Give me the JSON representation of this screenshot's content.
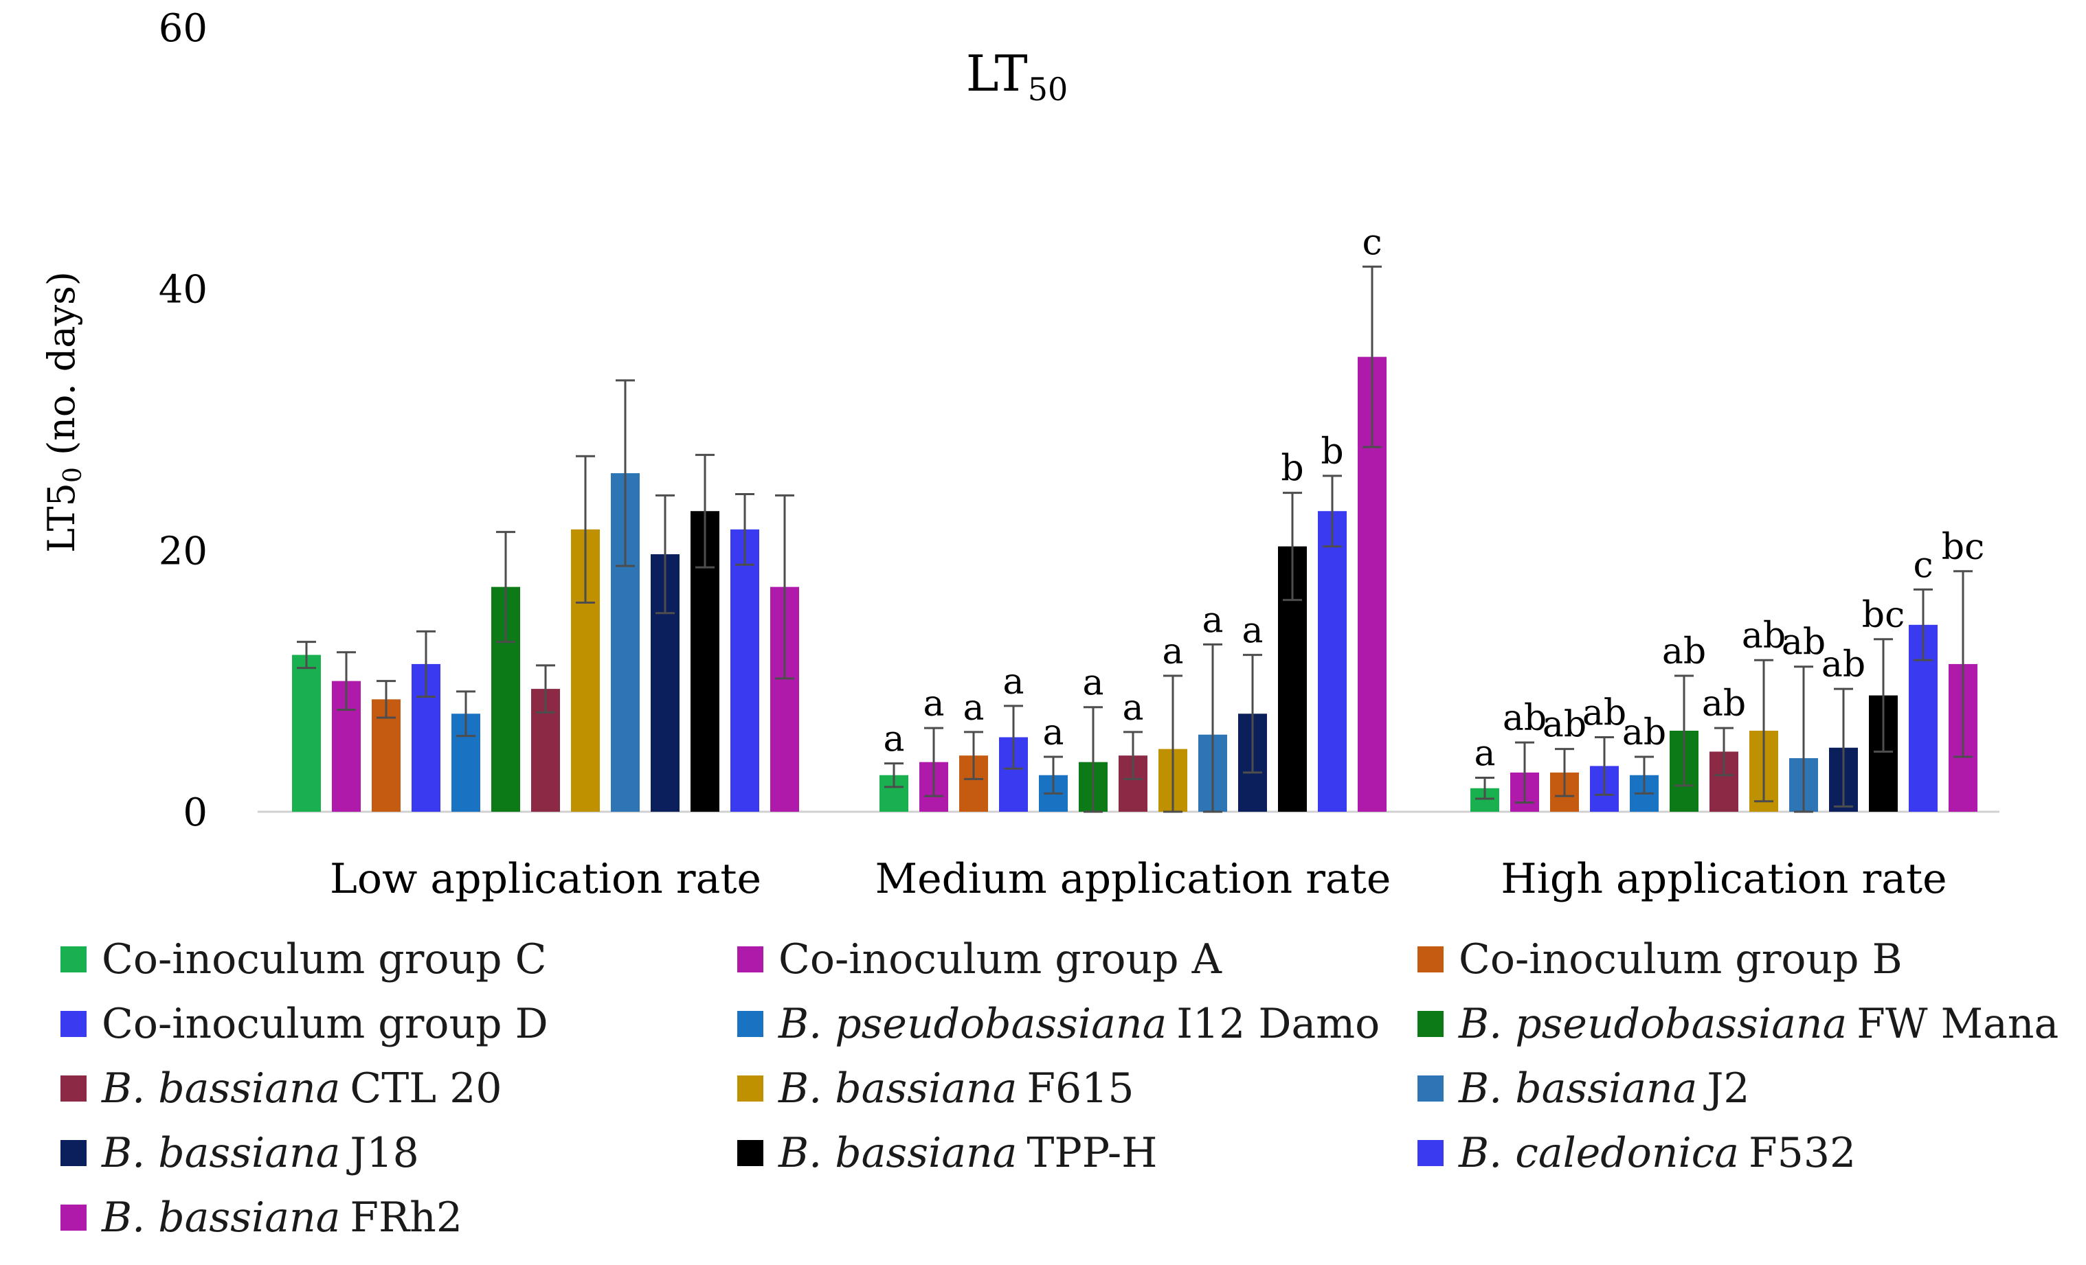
{
  "chart_data": {
    "type": "bar",
    "title": "LT",
    "title_subscript": "50",
    "ylabel": "LT5",
    "ylabel_subscript": "0",
    "ylabel_suffix": " (no. days)",
    "ylim": [
      0,
      60
    ],
    "yticks": [
      0,
      20,
      40,
      60
    ],
    "grid": false,
    "legend_position": "bottom",
    "categories": [
      "Low application rate",
      "Medium application rate",
      "High application rate"
    ],
    "series": [
      {
        "name": "Co-inoculum group C",
        "color": "#19b050",
        "values": [
          12.0,
          2.8,
          1.8
        ],
        "errors": [
          1.0,
          0.9,
          0.8
        ],
        "labels": [
          "",
          "a",
          "a"
        ]
      },
      {
        "name": "Co-inoculum group A",
        "color": "#b01aab",
        "values": [
          10.0,
          3.8,
          3.0
        ],
        "errors": [
          2.2,
          2.6,
          2.3
        ],
        "labels": [
          "",
          "a",
          "ab"
        ]
      },
      {
        "name": "Co-inoculum group B",
        "color": "#c55a11",
        "values": [
          8.6,
          4.3,
          3.0
        ],
        "errors": [
          1.4,
          1.8,
          1.8
        ],
        "labels": [
          "",
          "a",
          "ab"
        ]
      },
      {
        "name": "Co-inoculum group D",
        "color": "#3a3af0",
        "values": [
          11.3,
          5.7,
          3.5
        ],
        "errors": [
          2.5,
          2.4,
          2.2
        ],
        "labels": [
          "",
          "a",
          "ab"
        ]
      },
      {
        "name": "I12 Damo",
        "prefix": "B. pseudobassiana",
        "color": "#1a72c2",
        "values": [
          7.5,
          2.8,
          2.8
        ],
        "errors": [
          1.7,
          1.4,
          1.4
        ],
        "labels": [
          "",
          "a",
          "ab"
        ]
      },
      {
        "name": "FW Mana",
        "prefix": "B. pseudobassiana",
        "color": "#0d7a18",
        "values": [
          17.2,
          3.8,
          6.2
        ],
        "errors": [
          4.2,
          4.2,
          4.2
        ],
        "labels": [
          "",
          "a",
          "ab"
        ]
      },
      {
        "name": "CTL 20",
        "prefix": "B. bassiana",
        "color": "#8c2a45",
        "values": [
          9.4,
          4.3,
          4.6
        ],
        "errors": [
          1.8,
          1.8,
          1.8
        ],
        "labels": [
          "",
          "a",
          "ab"
        ]
      },
      {
        "name": "F615",
        "prefix": "B. bassiana",
        "color": "#bf9000",
        "values": [
          21.6,
          4.8,
          6.2
        ],
        "errors": [
          5.6,
          5.6,
          5.4
        ],
        "labels": [
          "",
          "a",
          "ab"
        ]
      },
      {
        "name": "J2",
        "prefix": "B. bassiana",
        "color": "#2e75b6",
        "values": [
          25.9,
          5.9,
          4.1
        ],
        "errors": [
          7.1,
          6.9,
          7.0
        ],
        "labels": [
          "",
          "a",
          "ab"
        ]
      },
      {
        "name": "J18",
        "prefix": "B. bassiana",
        "color": "#0b1f5c",
        "values": [
          19.7,
          7.5,
          4.9
        ],
        "errors": [
          4.5,
          4.5,
          4.5
        ],
        "labels": [
          "",
          "a",
          "ab"
        ]
      },
      {
        "name": "TPP-H",
        "prefix": "B. bassiana",
        "color": "#000000",
        "values": [
          23.0,
          20.3,
          8.9
        ],
        "errors": [
          4.3,
          4.1,
          4.3
        ],
        "labels": [
          "",
          "b",
          "bc"
        ]
      },
      {
        "name": "F532",
        "prefix": "B. caledonica",
        "color": "#3a3af0",
        "values": [
          21.6,
          23.0,
          14.3
        ],
        "errors": [
          2.7,
          2.7,
          2.7
        ],
        "labels": [
          "",
          "b",
          "c"
        ]
      },
      {
        "name": "FRh2",
        "prefix": "B. bassiana",
        "color": "#b01aab",
        "values": [
          17.2,
          34.8,
          11.3
        ],
        "errors": [
          7.0,
          6.9,
          7.1
        ],
        "labels": [
          "",
          "c",
          "bc"
        ]
      }
    ]
  }
}
